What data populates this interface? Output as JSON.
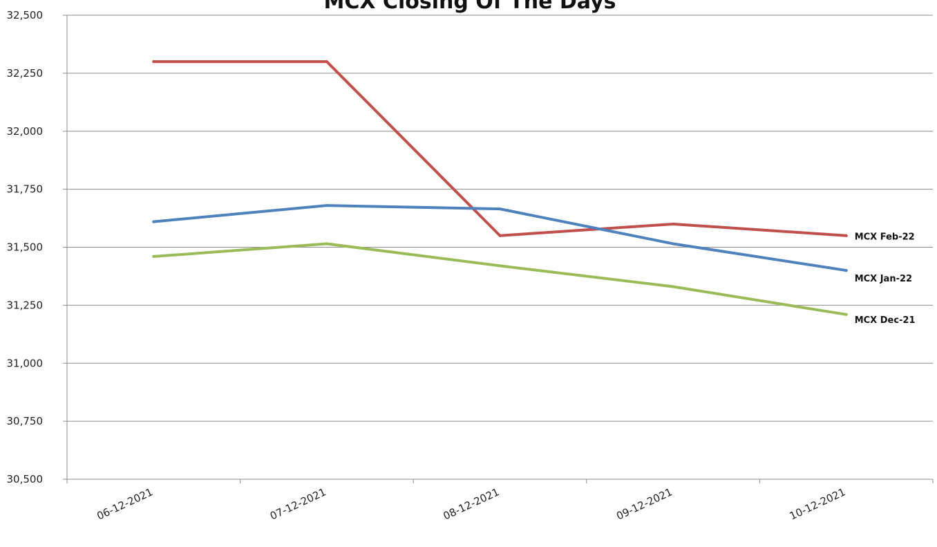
{
  "chart_data": {
    "type": "line",
    "title": "MCX Closing Of The Days",
    "xlabel": "",
    "ylabel": "",
    "categories": [
      "06-12-2021",
      "07-12-2021",
      "08-12-2021",
      "09-12-2021",
      "10-12-2021"
    ],
    "ylim": [
      30500,
      32500
    ],
    "yticks": [
      30500,
      30750,
      31000,
      31250,
      31500,
      31750,
      32000,
      32250,
      32500
    ],
    "ytick_labels": [
      "30,500",
      "30,750",
      "31,000",
      "31,250",
      "31,500",
      "31,750",
      "32,000",
      "32,250",
      "32,500"
    ],
    "grid": true,
    "legend": "inline labels at line ends (right)",
    "series": [
      {
        "name": "MCX Feb-22",
        "color": "#c0504d",
        "values": [
          32300,
          32300,
          31550,
          31600,
          31550
        ]
      },
      {
        "name": "MCX Jan-22",
        "color": "#4f81bd",
        "values": [
          31610,
          31680,
          31665,
          31515,
          31400
        ]
      },
      {
        "name": "MCX Dec-21",
        "color": "#9bbb59",
        "values": [
          31460,
          31515,
          31420,
          31330,
          31210
        ]
      }
    ]
  }
}
